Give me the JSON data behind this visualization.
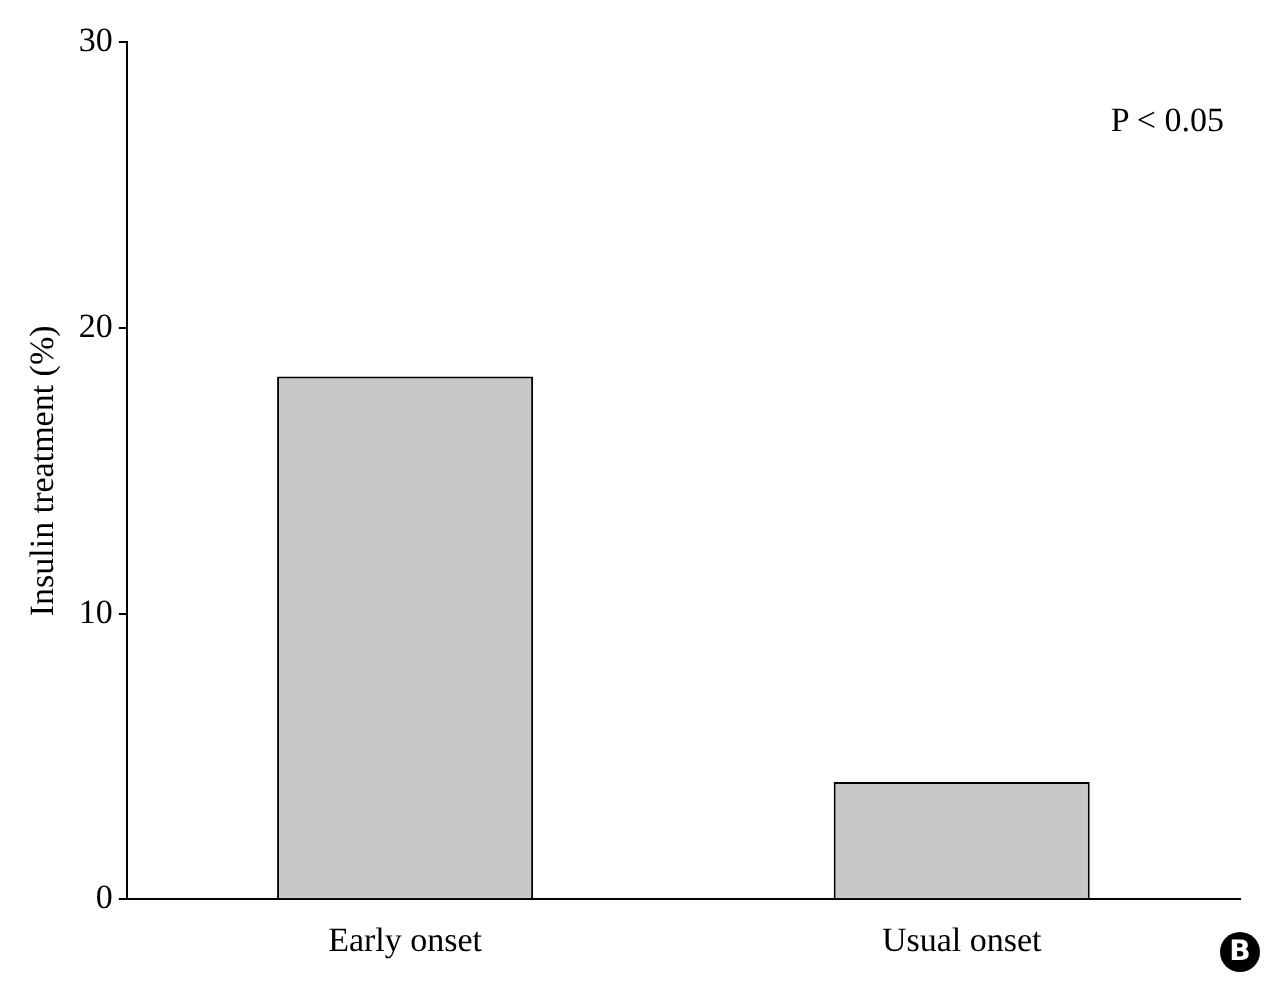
{
  "chart_data": {
    "type": "bar",
    "ylabel": "Insulin treatment (%)",
    "categories": [
      "Early onset",
      "Usual onset"
    ],
    "values": [
      18.3,
      4.1
    ],
    "color": "#c8c8c8",
    "ylim": [
      0,
      30
    ],
    "yticks": [
      0,
      10,
      20,
      30
    ],
    "grid": false,
    "legend": false,
    "annotations": [
      "P < 0.05",
      "B"
    ]
  }
}
